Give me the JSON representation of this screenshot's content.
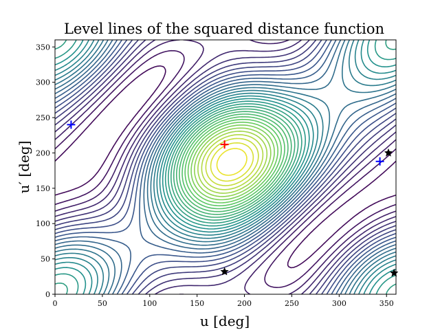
{
  "chart_data": {
    "type": "contour",
    "title": "Level lines of the squared distance function",
    "xlabel": "u [deg]",
    "ylabel": "u′ [deg]",
    "xlim": [
      0,
      360
    ],
    "ylim": [
      0,
      360
    ],
    "xticks": [
      0,
      50,
      100,
      150,
      200,
      250,
      300,
      350
    ],
    "yticks": [
      0,
      50,
      100,
      150,
      200,
      250,
      300,
      350
    ],
    "grid": false,
    "colormap": [
      "#440154",
      "#3b528b",
      "#21918c",
      "#5ec962",
      "#fde725"
    ],
    "markers": [
      {
        "name": "maximum",
        "shape": "plus",
        "color": "#ff0000",
        "x": 179,
        "y": 212
      },
      {
        "name": "minimum",
        "shape": "plus",
        "color": "#0000ff",
        "x": 17,
        "y": 240
      },
      {
        "name": "minimum",
        "shape": "plus",
        "color": "#0000ff",
        "x": 343,
        "y": 188
      },
      {
        "name": "saddle",
        "shape": "star",
        "color": "#000000",
        "x": 179,
        "y": 32
      },
      {
        "name": "saddle",
        "shape": "star",
        "color": "#000000",
        "x": 352,
        "y": 200
      },
      {
        "name": "saddle",
        "shape": "star",
        "color": "#000000",
        "x": 358,
        "y": 30
      }
    ]
  }
}
